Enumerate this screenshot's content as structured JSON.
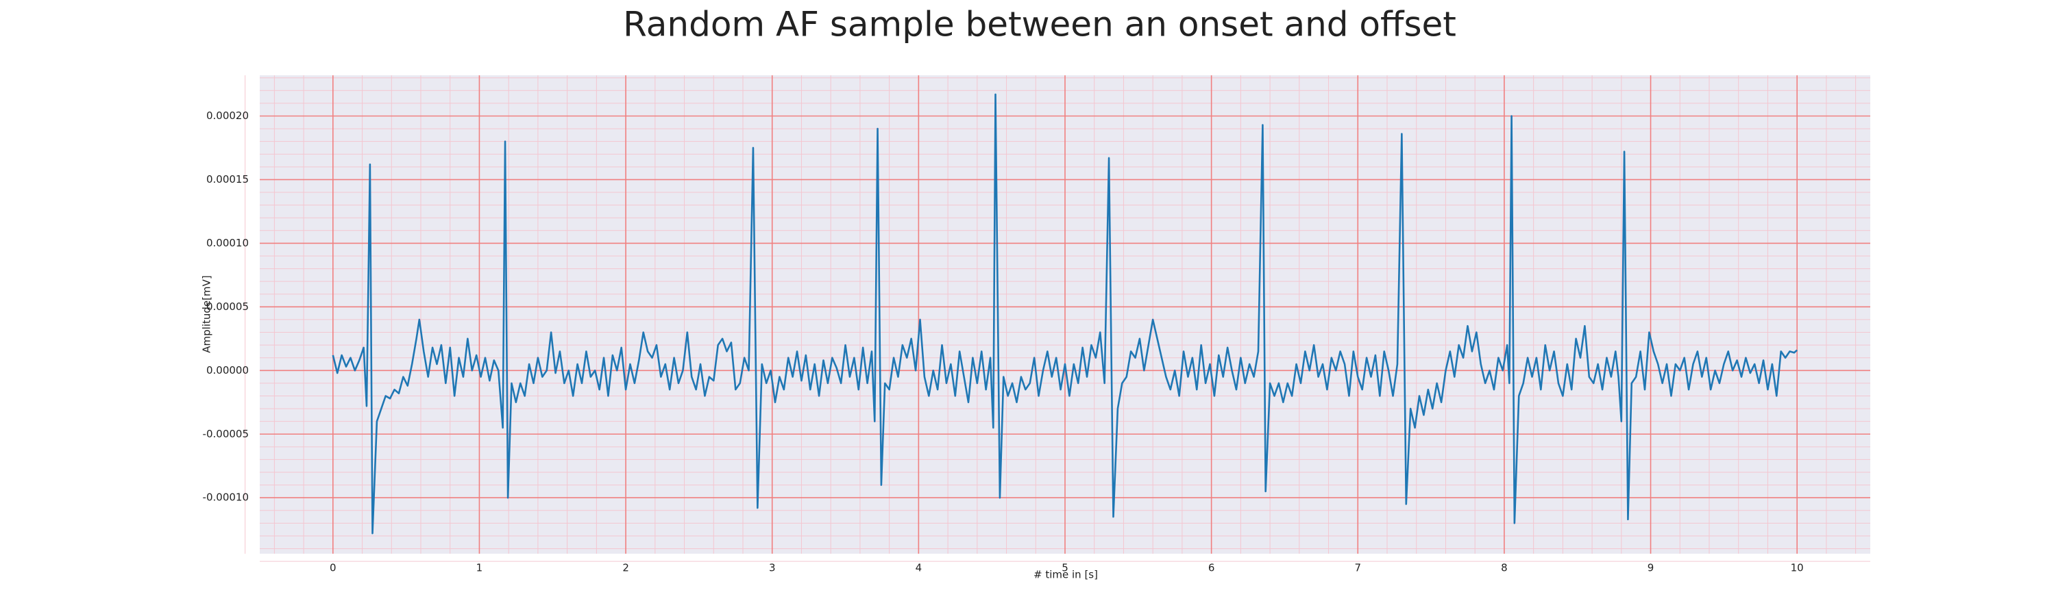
{
  "chart_data": {
    "type": "line",
    "title": "Random AF sample between an onset and offset",
    "x_label": "# time in [s]",
    "y_label": "Amplitude[mV]",
    "xlim": [
      -0.5,
      10.5
    ],
    "ylim": [
      -0.000144,
      0.000232
    ],
    "xticks": [
      0,
      1,
      2,
      3,
      4,
      5,
      6,
      7,
      8,
      9,
      10
    ],
    "yticks": [
      {
        "value": -0.0001,
        "label": "-0.00010"
      },
      {
        "value": -5e-05,
        "label": "-0.00005"
      },
      {
        "value": 0,
        "label": "0.00000"
      },
      {
        "value": 5e-05,
        "label": "0.00005"
      },
      {
        "value": 0.0001,
        "label": "0.00010"
      },
      {
        "value": 0.00015,
        "label": "0.00015"
      },
      {
        "value": 0.0002,
        "label": "0.00020"
      }
    ],
    "grid": true,
    "minor_grid": true,
    "grid_color": "#f08080",
    "minor_grid_color": "#f4c6d0",
    "background": "#eaeaf2",
    "color": "#1f77b4",
    "x": [
      0,
      0.03,
      0.06,
      0.09,
      0.12,
      0.15,
      0.18,
      0.21,
      0.23,
      0.253,
      0.27,
      0.3,
      0.33,
      0.36,
      0.39,
      0.42,
      0.45,
      0.48,
      0.51,
      0.54,
      0.57,
      0.59,
      0.62,
      0.65,
      0.68,
      0.71,
      0.74,
      0.77,
      0.8,
      0.83,
      0.86,
      0.89,
      0.92,
      0.95,
      0.98,
      1.01,
      1.04,
      1.07,
      1.1,
      1.13,
      1.16,
      1.176,
      1.195,
      1.22,
      1.25,
      1.28,
      1.31,
      1.34,
      1.37,
      1.4,
      1.43,
      1.46,
      1.49,
      1.52,
      1.55,
      1.58,
      1.61,
      1.64,
      1.67,
      1.7,
      1.73,
      1.76,
      1.79,
      1.82,
      1.85,
      1.88,
      1.91,
      1.94,
      1.97,
      2,
      2.03,
      2.06,
      2.09,
      2.12,
      2.15,
      2.18,
      2.21,
      2.24,
      2.27,
      2.3,
      2.33,
      2.36,
      2.39,
      2.42,
      2.45,
      2.48,
      2.51,
      2.54,
      2.57,
      2.6,
      2.63,
      2.66,
      2.69,
      2.72,
      2.75,
      2.78,
      2.81,
      2.84,
      2.87,
      2.9,
      2.93,
      2.96,
      2.99,
      3.02,
      3.05,
      3.08,
      3.11,
      3.14,
      3.17,
      3.2,
      3.23,
      3.26,
      3.29,
      3.32,
      3.35,
      3.38,
      3.41,
      3.44,
      3.47,
      3.5,
      3.53,
      3.56,
      3.59,
      3.62,
      3.65,
      3.68,
      3.7,
      3.72,
      3.745,
      3.77,
      3.8,
      3.83,
      3.86,
      3.89,
      3.92,
      3.95,
      3.98,
      4.01,
      4.04,
      4.07,
      4.1,
      4.13,
      4.16,
      4.19,
      4.22,
      4.25,
      4.28,
      4.31,
      4.34,
      4.37,
      4.4,
      4.43,
      4.46,
      4.49,
      4.51,
      4.525,
      4.555,
      4.58,
      4.61,
      4.64,
      4.67,
      4.7,
      4.73,
      4.76,
      4.79,
      4.82,
      4.85,
      4.88,
      4.91,
      4.94,
      4.97,
      5,
      5.03,
      5.06,
      5.09,
      5.12,
      5.15,
      5.18,
      5.21,
      5.24,
      5.27,
      5.3,
      5.33,
      5.36,
      5.39,
      5.42,
      5.45,
      5.48,
      5.51,
      5.54,
      5.57,
      5.6,
      5.63,
      5.66,
      5.69,
      5.72,
      5.75,
      5.78,
      5.81,
      5.84,
      5.87,
      5.9,
      5.93,
      5.96,
      5.99,
      6.02,
      6.05,
      6.08,
      6.11,
      6.14,
      6.17,
      6.2,
      6.23,
      6.26,
      6.29,
      6.32,
      6.35,
      6.37,
      6.4,
      6.43,
      6.46,
      6.49,
      6.52,
      6.55,
      6.58,
      6.61,
      6.64,
      6.67,
      6.7,
      6.73,
      6.76,
      6.79,
      6.82,
      6.85,
      6.88,
      6.91,
      6.94,
      6.97,
      7,
      7.03,
      7.06,
      7.09,
      7.12,
      7.15,
      7.18,
      7.21,
      7.24,
      7.27,
      7.3,
      7.33,
      7.36,
      7.39,
      7.42,
      7.45,
      7.48,
      7.51,
      7.54,
      7.57,
      7.6,
      7.63,
      7.66,
      7.69,
      7.72,
      7.75,
      7.78,
      7.81,
      7.84,
      7.87,
      7.9,
      7.93,
      7.96,
      7.99,
      8.02,
      8.035,
      8.05,
      8.07,
      8.1,
      8.13,
      8.16,
      8.19,
      8.22,
      8.25,
      8.28,
      8.31,
      8.34,
      8.37,
      8.4,
      8.43,
      8.46,
      8.49,
      8.52,
      8.55,
      8.58,
      8.61,
      8.64,
      8.67,
      8.7,
      8.73,
      8.76,
      8.78,
      8.8,
      8.82,
      8.845,
      8.87,
      8.9,
      8.93,
      8.96,
      8.99,
      9.02,
      9.05,
      9.08,
      9.11,
      9.14,
      9.17,
      9.2,
      9.23,
      9.26,
      9.29,
      9.32,
      9.35,
      9.38,
      9.41,
      9.44,
      9.47,
      9.5,
      9.53,
      9.56,
      9.59,
      9.62,
      9.65,
      9.68,
      9.71,
      9.74,
      9.77,
      9.8,
      9.83,
      9.86,
      9.89,
      9.92,
      9.95,
      9.98,
      10
    ],
    "values": [
      1.2e-05,
      -2e-06,
      1.2e-05,
      3e-06,
      1e-05,
      0,
      8e-06,
      1.8e-05,
      -2.8e-05,
      0.000162,
      -0.000128,
      -4e-05,
      -3e-05,
      -2e-05,
      -2.2e-05,
      -1.5e-05,
      -1.8e-05,
      -5e-06,
      -1.2e-05,
      5e-06,
      2.5e-05,
      4e-05,
      1.5e-05,
      -5e-06,
      1.8e-05,
      5e-06,
      2e-05,
      -1e-05,
      1.8e-05,
      -2e-05,
      1e-05,
      -5e-06,
      2.5e-05,
      0,
      1.2e-05,
      -5e-06,
      1e-05,
      -8e-06,
      8e-06,
      0,
      -4.5e-05,
      0.00018,
      -0.0001,
      -1e-05,
      -2.5e-05,
      -1e-05,
      -2e-05,
      5e-06,
      -1e-05,
      1e-05,
      -5e-06,
      0,
      3e-05,
      -2e-06,
      1.5e-05,
      -1e-05,
      0,
      -2e-05,
      5e-06,
      -1e-05,
      1.5e-05,
      -5e-06,
      0,
      -1.5e-05,
      1e-05,
      -2e-05,
      1.2e-05,
      0,
      1.8e-05,
      -1.5e-05,
      5e-06,
      -1e-05,
      8e-06,
      3e-05,
      1.5e-05,
      1e-05,
      2e-05,
      -5e-06,
      5e-06,
      -1.5e-05,
      1e-05,
      -1e-05,
      0,
      3e-05,
      -5e-06,
      -1.5e-05,
      5e-06,
      -2e-05,
      -5e-06,
      -8e-06,
      2e-05,
      2.5e-05,
      1.5e-05,
      2.2e-05,
      -1.5e-05,
      -1e-05,
      1e-05,
      0,
      0.000175,
      -0.000108,
      5e-06,
      -1e-05,
      0,
      -2.5e-05,
      -5e-06,
      -1.5e-05,
      1e-05,
      -5e-06,
      1.5e-05,
      -8e-06,
      1.2e-05,
      -1.5e-05,
      5e-06,
      -2e-05,
      8e-06,
      -1e-05,
      1e-05,
      2e-06,
      -1e-05,
      2e-05,
      -5e-06,
      1e-05,
      -1.5e-05,
      1.8e-05,
      -1e-05,
      1.5e-05,
      -4e-05,
      0.00019,
      -9e-05,
      -1e-05,
      -1.5e-05,
      1e-05,
      -5e-06,
      2e-05,
      1e-05,
      2.5e-05,
      0,
      4e-05,
      -5e-06,
      -2e-05,
      0,
      -1.5e-05,
      2e-05,
      -1e-05,
      5e-06,
      -2e-05,
      1.5e-05,
      -5e-06,
      -2.5e-05,
      1e-05,
      -1e-05,
      1.5e-05,
      -1.5e-05,
      1e-05,
      -4.5e-05,
      0.000217,
      -0.0001,
      -5e-06,
      -2e-05,
      -1e-05,
      -2.5e-05,
      -5e-06,
      -1.5e-05,
      -1e-05,
      1e-05,
      -2e-05,
      0,
      1.5e-05,
      -5e-06,
      1e-05,
      -1.5e-05,
      5e-06,
      -2e-05,
      5e-06,
      -1e-05,
      1.8e-05,
      -5e-06,
      2e-05,
      1e-05,
      3e-05,
      -1e-05,
      0.000167,
      -0.000115,
      -3e-05,
      -1e-05,
      -5e-06,
      1.5e-05,
      1e-05,
      2.5e-05,
      0,
      2e-05,
      4e-05,
      2.5e-05,
      1e-05,
      -5e-06,
      -1.5e-05,
      0,
      -2e-05,
      1.5e-05,
      -5e-06,
      1e-05,
      -1.5e-05,
      2e-05,
      -1e-05,
      5e-06,
      -2e-05,
      1.2e-05,
      -5e-06,
      1.8e-05,
      0,
      -1.5e-05,
      1e-05,
      -1e-05,
      5e-06,
      -5e-06,
      1.5e-05,
      0.000193,
      -9.5e-05,
      -1e-05,
      -2e-05,
      -1e-05,
      -2.5e-05,
      -1e-05,
      -2e-05,
      5e-06,
      -1e-05,
      1.5e-05,
      0,
      2e-05,
      -5e-06,
      5e-06,
      -1.5e-05,
      1e-05,
      0,
      1.5e-05,
      5e-06,
      -2e-05,
      1.5e-05,
      -5e-06,
      -1.5e-05,
      1e-05,
      -5e-06,
      1.2e-05,
      -2e-05,
      1.5e-05,
      0,
      -2e-05,
      5e-06,
      0.000186,
      -0.000105,
      -3e-05,
      -4.5e-05,
      -2e-05,
      -3.5e-05,
      -1.5e-05,
      -3e-05,
      -1e-05,
      -2.5e-05,
      0,
      1.5e-05,
      -5e-06,
      2e-05,
      1e-05,
      3.5e-05,
      1.5e-05,
      3e-05,
      5e-06,
      -1e-05,
      0,
      -1.5e-05,
      1e-05,
      0,
      2e-05,
      -1e-05,
      0.0002,
      -0.00012,
      -2e-05,
      -1e-05,
      1e-05,
      -5e-06,
      1e-05,
      -1.5e-05,
      2e-05,
      0,
      1.5e-05,
      -1e-05,
      -2e-05,
      5e-06,
      -1.5e-05,
      2.5e-05,
      1e-05,
      3.5e-05,
      -5e-06,
      -1e-05,
      5e-06,
      -1.5e-05,
      1e-05,
      -5e-06,
      1.5e-05,
      -5e-06,
      -4e-05,
      0.000172,
      -0.000117,
      -1e-05,
      -5e-06,
      1.5e-05,
      -1.5e-05,
      3e-05,
      1.5e-05,
      5e-06,
      -1e-05,
      5e-06,
      -2e-05,
      5e-06,
      0,
      1e-05,
      -1.5e-05,
      5e-06,
      1.5e-05,
      -5e-06,
      1e-05,
      -1.5e-05,
      0,
      -1e-05,
      5e-06,
      1.5e-05,
      0,
      8e-06,
      -5e-06,
      1e-05,
      -2e-06,
      5e-06,
      -1e-05,
      8e-06,
      -1.5e-05,
      5e-06,
      -2e-05,
      1.5e-05,
      1e-05,
      1.5e-05,
      1.4e-05,
      1.6e-05
    ]
  }
}
